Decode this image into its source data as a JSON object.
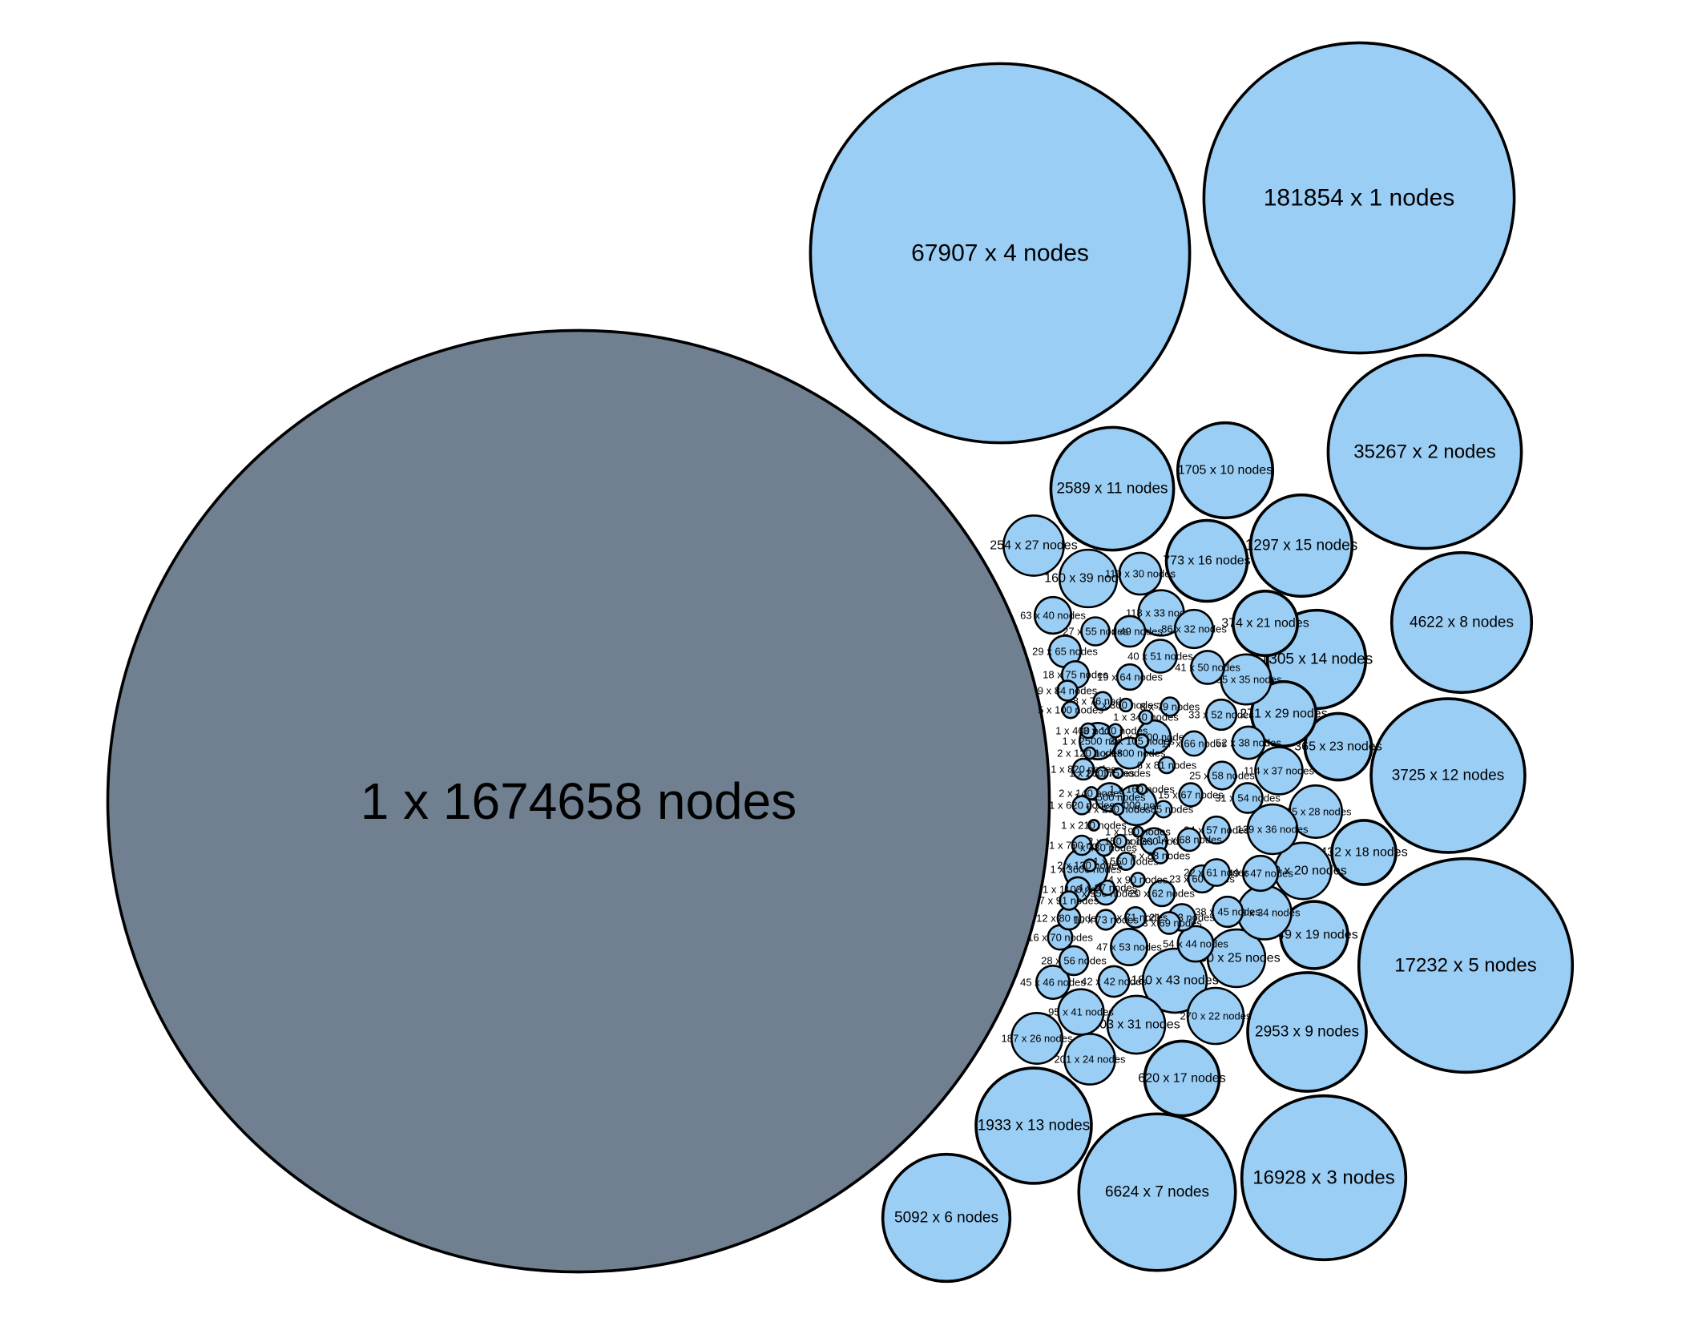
{
  "chart_data": {
    "type": "bubble",
    "title": "",
    "label_format": "{count} x {size} nodes",
    "colors": {
      "largest": "#708090",
      "other": "#9ACEF5",
      "stroke": "#000000"
    },
    "bubbles": [
      {
        "label": "1 x 1674658 nodes",
        "count": 1,
        "size": 1674658,
        "largest": true
      },
      {
        "label": "181854 x 1 nodes",
        "count": 181854,
        "size": 1
      },
      {
        "label": "67907 x 4 nodes",
        "count": 67907,
        "size": 4
      },
      {
        "label": "35267 x 2 nodes",
        "count": 35267,
        "size": 2
      },
      {
        "label": "17232 x 5 nodes",
        "count": 17232,
        "size": 5
      },
      {
        "label": "16928 x 3 nodes",
        "count": 16928,
        "size": 3
      },
      {
        "label": "6624 x 7 nodes",
        "count": 6624,
        "size": 7
      },
      {
        "label": "5092 x 6 nodes",
        "count": 5092,
        "size": 6
      },
      {
        "label": "4622 x 8 nodes",
        "count": 4622,
        "size": 8
      },
      {
        "label": "3725 x 12 nodes",
        "count": 3725,
        "size": 12
      },
      {
        "label": "2953 x 9 nodes",
        "count": 2953,
        "size": 9
      },
      {
        "label": "2589 x 11 nodes",
        "count": 2589,
        "size": 11
      },
      {
        "label": "1933 x 13 nodes",
        "count": 1933,
        "size": 13
      },
      {
        "label": "1705 x 10 nodes",
        "count": 1705,
        "size": 10
      },
      {
        "label": "1305 x 14 nodes",
        "count": 1305,
        "size": 14
      },
      {
        "label": "1297 x 15 nodes",
        "count": 1297,
        "size": 15
      },
      {
        "label": "773 x 16 nodes",
        "count": 773,
        "size": 16
      },
      {
        "label": "620 x 17 nodes",
        "count": 620,
        "size": 17
      },
      {
        "label": "449 x 19 nodes",
        "count": 449,
        "size": 19
      },
      {
        "label": "432 x 18 nodes",
        "count": 432,
        "size": 18
      },
      {
        "label": "374 x 21 nodes",
        "count": 374,
        "size": 21
      },
      {
        "label": "365 x 23 nodes",
        "count": 365,
        "size": 23
      },
      {
        "label": "300 x 20 nodes",
        "count": 300,
        "size": 20
      },
      {
        "label": "270 x 22 nodes",
        "count": 270,
        "size": 22
      },
      {
        "label": "271 x 29 nodes",
        "count": 271,
        "size": 29
      },
      {
        "label": "250 x 25 nodes",
        "count": 250,
        "size": 25
      },
      {
        "label": "254 x 27 nodes",
        "count": 254,
        "size": 27
      },
      {
        "label": "203 x 31 nodes",
        "count": 203,
        "size": 31
      },
      {
        "label": "201 x 24 nodes",
        "count": 201,
        "size": 24
      },
      {
        "label": "187 x 26 nodes",
        "count": 187,
        "size": 26
      },
      {
        "label": "185 x 28 nodes",
        "count": 185,
        "size": 28
      },
      {
        "label": "160 x 39 nodes",
        "count": 160,
        "size": 39
      },
      {
        "label": "180 x 43 nodes",
        "count": 180,
        "size": 43
      },
      {
        "label": "160 x 34 nodes",
        "count": 160,
        "size": 34
      },
      {
        "label": "135 x 35 nodes",
        "count": 135,
        "size": 35
      },
      {
        "label": "129 x 36 nodes",
        "count": 129,
        "size": 36
      },
      {
        "label": "118 x 33 nodes",
        "count": 118,
        "size": 33
      },
      {
        "label": "114 x 37 nodes",
        "count": 114,
        "size": 37
      },
      {
        "label": "110 x 30 nodes",
        "count": 110,
        "size": 30
      },
      {
        "label": "95 x 41 nodes",
        "count": 95,
        "size": 41
      },
      {
        "label": "86 x 32 nodes",
        "count": 86,
        "size": 32
      },
      {
        "label": "63 x 40 nodes",
        "count": 63,
        "size": 40
      },
      {
        "label": "45 x 46 nodes",
        "count": 45,
        "size": 46
      },
      {
        "label": "29 x 65 nodes",
        "count": 29,
        "size": 65
      },
      {
        "label": "28 x 56 nodes",
        "count": 28,
        "size": 56
      },
      {
        "label": "18 x 75 nodes",
        "count": 18,
        "size": 75
      },
      {
        "label": "16 x 70 nodes",
        "count": 16,
        "size": 70
      },
      {
        "label": "12 x 80 nodes",
        "count": 12,
        "size": 80
      },
      {
        "label": "9 x 84 nodes",
        "count": 9,
        "size": 84
      },
      {
        "label": "7 x 91 nodes",
        "count": 7,
        "size": 91
      },
      {
        "label": "5 x 100 nodes",
        "count": 5,
        "size": 100
      },
      {
        "label": "54 x 44 nodes",
        "count": 54,
        "size": 44
      },
      {
        "label": "38 x 45 nodes",
        "count": 38,
        "size": 45
      },
      {
        "label": "42 x 42 nodes",
        "count": 42,
        "size": 42
      },
      {
        "label": "47 x 53 nodes",
        "count": 47,
        "size": 53
      },
      {
        "label": "52 x 38 nodes",
        "count": 52,
        "size": 38
      },
      {
        "label": "49 x 47 nodes",
        "count": 49,
        "size": 47
      },
      {
        "label": "41 x 50 nodes",
        "count": 41,
        "size": 50
      },
      {
        "label": "40 x 51 nodes",
        "count": 40,
        "size": 51
      },
      {
        "label": "36 x 49 nodes",
        "count": 36,
        "size": 49
      },
      {
        "label": "33 x 52 nodes",
        "count": 33,
        "size": 52
      },
      {
        "label": "31 x 54 nodes",
        "count": 31,
        "size": 54
      },
      {
        "label": "27 x 55 nodes",
        "count": 27,
        "size": 55
      },
      {
        "label": "25 x 58 nodes",
        "count": 25,
        "size": 58
      },
      {
        "label": "24 x 57 nodes",
        "count": 24,
        "size": 57
      },
      {
        "label": "23 x 60 nodes",
        "count": 23,
        "size": 60
      },
      {
        "label": "22 x 61 nodes",
        "count": 22,
        "size": 61
      },
      {
        "label": "21 x 63 nodes",
        "count": 21,
        "size": 63
      },
      {
        "label": "20 x 62 nodes",
        "count": 20,
        "size": 62
      },
      {
        "label": "19 x 64 nodes",
        "count": 19,
        "size": 64
      },
      {
        "label": "17 x 66 nodes",
        "count": 17,
        "size": 66
      },
      {
        "label": "15 x 67 nodes",
        "count": 15,
        "size": 67
      },
      {
        "label": "14 x 68 nodes",
        "count": 14,
        "size": 68
      },
      {
        "label": "13 x 69 nodes",
        "count": 13,
        "size": 69
      },
      {
        "label": "11 x 71 nodes",
        "count": 11,
        "size": 71
      },
      {
        "label": "10 x 73 nodes",
        "count": 10,
        "size": 73
      },
      {
        "label": "8 x 76 nodes",
        "count": 8,
        "size": 76
      },
      {
        "label": "8 x 79 nodes",
        "count": 8,
        "size": 79
      },
      {
        "label": "6 x 81 nodes",
        "count": 6,
        "size": 81
      },
      {
        "label": "6 x 85 nodes",
        "count": 6,
        "size": 85
      },
      {
        "label": "5 x 88 nodes",
        "count": 5,
        "size": 88
      },
      {
        "label": "4 x 90 nodes",
        "count": 4,
        "size": 90
      },
      {
        "label": "4 x 97 nodes",
        "count": 4,
        "size": 97
      },
      {
        "label": "3 x 110 nodes",
        "count": 3,
        "size": 110
      },
      {
        "label": "3 x 105 nodes",
        "count": 3,
        "size": 105
      },
      {
        "label": "2 x 120 nodes",
        "count": 2,
        "size": 120
      },
      {
        "label": "2 x 130 nodes",
        "count": 2,
        "size": 130
      },
      {
        "label": "2 x 140 nodes",
        "count": 2,
        "size": 140
      },
      {
        "label": "2 x 150 nodes",
        "count": 2,
        "size": 150
      },
      {
        "label": "1 x 160 nodes",
        "count": 1,
        "size": 160
      },
      {
        "label": "1 x 175 nodes",
        "count": 1,
        "size": 175
      },
      {
        "label": "1 x 190 nodes",
        "count": 1,
        "size": 190
      },
      {
        "label": "1 x 210 nodes",
        "count": 1,
        "size": 210
      },
      {
        "label": "1 x 230 nodes",
        "count": 1,
        "size": 230
      },
      {
        "label": "1 x 260 nodes",
        "count": 1,
        "size": 260
      },
      {
        "label": "1 x 300 nodes",
        "count": 1,
        "size": 300
      },
      {
        "label": "1 x 340 nodes",
        "count": 1,
        "size": 340
      },
      {
        "label": "1 x 400 nodes",
        "count": 1,
        "size": 400
      },
      {
        "label": "1 x 480 nodes",
        "count": 1,
        "size": 480
      },
      {
        "label": "1 x 550 nodes",
        "count": 1,
        "size": 550
      },
      {
        "label": "1 x 620 nodes",
        "count": 1,
        "size": 620
      },
      {
        "label": "1 x 700 nodes",
        "count": 1,
        "size": 700
      },
      {
        "label": "1 x 820 nodes",
        "count": 1,
        "size": 820
      },
      {
        "label": "1 x 950 nodes",
        "count": 1,
        "size": 950
      },
      {
        "label": "1 x 1100 nodes",
        "count": 1,
        "size": 1100
      },
      {
        "label": "1 x 1300 nodes",
        "count": 1,
        "size": 1300
      },
      {
        "label": "1 x 1500 nodes",
        "count": 1,
        "size": 1500
      },
      {
        "label": "1 x 1800 nodes",
        "count": 1,
        "size": 1800
      },
      {
        "label": "1 x 2100 nodes",
        "count": 1,
        "size": 2100
      },
      {
        "label": "1 x 2500 nodes",
        "count": 1,
        "size": 2500
      },
      {
        "label": "1 x 3000 nodes",
        "count": 1,
        "size": 3000
      },
      {
        "label": "1 x 3600 nodes",
        "count": 1,
        "size": 3600
      }
    ]
  }
}
